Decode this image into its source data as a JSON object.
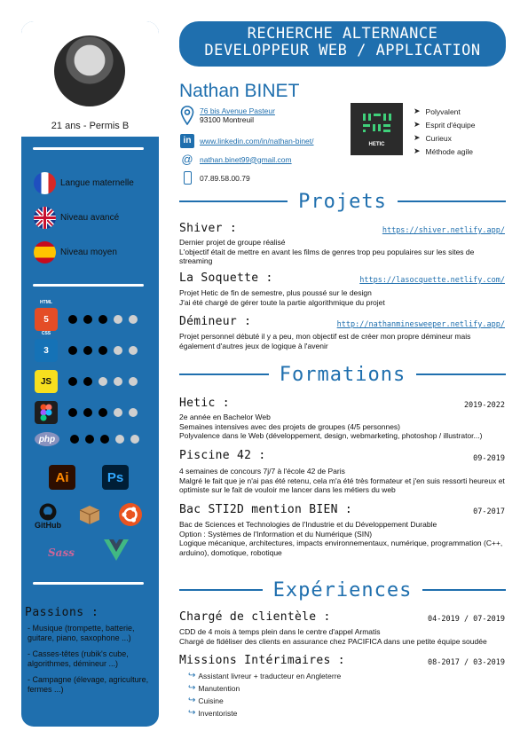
{
  "sidebar": {
    "age": "21 ans - Permis B",
    "languages": [
      {
        "label": "Langue maternelle",
        "flag": "france-flag-icon"
      },
      {
        "label": "Niveau avancé",
        "flag": "uk-flag-icon"
      },
      {
        "label": "Niveau moyen",
        "flag": "spain-flag-icon"
      }
    ],
    "skills": [
      {
        "icon": "html5-icon",
        "text": "5",
        "caption": "HTML",
        "level": 3,
        "max": 5
      },
      {
        "icon": "css3-icon",
        "text": "3",
        "caption": "CSS",
        "level": 3,
        "max": 5
      },
      {
        "icon": "js-icon",
        "text": "JS",
        "caption": "",
        "level": 2,
        "max": 5
      },
      {
        "icon": "figma-icon",
        "text": "",
        "caption": "",
        "level": 3,
        "max": 5
      },
      {
        "icon": "php-icon",
        "text": "php",
        "caption": "",
        "level": 3,
        "max": 5
      }
    ],
    "tools": [
      {
        "name": "illustrator-icon",
        "text": "Ai"
      },
      {
        "name": "photoshop-icon",
        "text": "Ps"
      },
      {
        "name": "github-icon",
        "text": "GitHub"
      },
      {
        "name": "package-icon",
        "text": ""
      },
      {
        "name": "ubuntu-icon",
        "text": ""
      },
      {
        "name": "sass-icon",
        "text": "Sass"
      },
      {
        "name": "vue-icon",
        "text": ""
      }
    ],
    "passions_title": "Passions :",
    "passions": [
      "- Musique (trompette, batterie, guitare, piano, saxophone ...)",
      "- Casses-têtes (rubik's cube, algorithmes, démineur ...)",
      "- Campagne (élevage, agriculture, fermes ...)"
    ]
  },
  "header": {
    "banner_line1": "RECHERCHE ALTERNANCE",
    "banner_line2": "DEVELOPPEUR WEB / APPLICATION",
    "name": "Nathan BINET",
    "address_line1": "76 bis Avenue Pasteur",
    "address_line2": "93100 Montreuil",
    "linkedin": "www.linkedin.com/in/nathan-binet/",
    "email": "nathan.binet99@gmail.com",
    "phone": "07.89.58.00.79",
    "logo_text": "HETIC",
    "qualities": [
      "Polyvalent",
      "Esprit d'équipe",
      "Curieux",
      "Méthode agile"
    ]
  },
  "projects": {
    "title": "Projets",
    "items": [
      {
        "name": "Shiver :",
        "url": "https://shiver.netlify.app/",
        "lines": [
          "Dernier projet de groupe réalisé",
          "L'objectif était de mettre en avant les films de genres trop peu populaires sur les sites de streaming"
        ]
      },
      {
        "name": "La Soquette :",
        "url": "https://lasocquette.netlify.com/",
        "lines": [
          "Projet Hetic de fin de semestre, plus poussé sur le design",
          "J'ai été chargé de gérer toute la partie algorithmique du projet"
        ]
      },
      {
        "name": "Démineur :",
        "url": "http://nathanminesweeper.netlify.app/",
        "lines": [
          "Projet personnel débuté il y a peu, mon objectif est de créer mon propre démineur mais également d'autres jeux de logique à l'avenir"
        ]
      }
    ]
  },
  "formations": {
    "title": "Formations",
    "items": [
      {
        "name": "Hetic :",
        "date": "2019-2022",
        "lines": [
          "2e année en Bachelor Web",
          "Semaines intensives avec des projets de groupes (4/5 personnes)",
          "Polyvalence dans le Web (développement, design, webmarketing, photoshop / illustrator...)"
        ]
      },
      {
        "name": "Piscine 42 :",
        "date": "09-2019",
        "lines": [
          "4 semaines de concours 7j/7 à l'école 42 de Paris",
          "Malgré le fait que je n'ai pas été retenu, cela m'a été très formateur et j'en suis ressorti heureux et optimiste sur le fait de vouloir me lancer dans les métiers du web"
        ]
      },
      {
        "name": "Bac STI2D mention BIEN :",
        "date": "07-2017",
        "lines": [
          "Bac de Sciences et Technologies de l'Industrie et du Développement Durable",
          "Option : Systèmes de l'Information et du Numérique (SIN)",
          "Logique mécanique, architectures, impacts environnementaux, numérique, programmation (C++, arduino), domotique, robotique"
        ]
      }
    ]
  },
  "experiences": {
    "title": "Expériences",
    "items": [
      {
        "name": "Chargé de clientèle :",
        "date": "04-2019 / 07-2019",
        "lines": [
          "CDD de 4 mois à temps plein dans le centre d'appel Armatis",
          "Chargé de fidéliser des clients en assurance chez PACIFICA dans une petite équipe soudée"
        ]
      },
      {
        "name": "Missions Intérimaires :",
        "date": "08-2017 / 03-2019",
        "missions": [
          "Assistant livreur + traducteur en Angleterre",
          "Manutention",
          "Cuisine",
          "Inventoriste"
        ]
      }
    ]
  },
  "colors": {
    "primary": "#1f6fae",
    "sidebar": "#1f6fae"
  }
}
